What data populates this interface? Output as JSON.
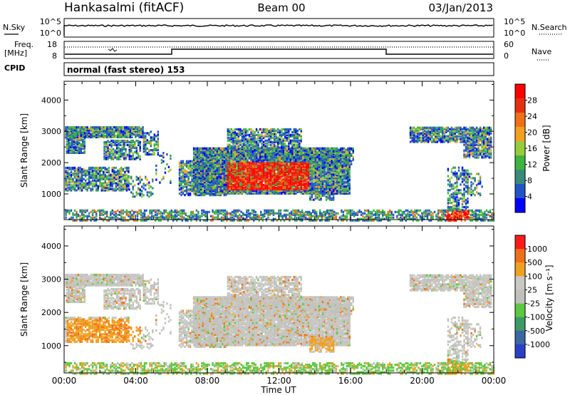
{
  "header": {
    "station": "Hankasalmi (fitACF)",
    "beam": "Beam 00",
    "date": "03/Jan/2013"
  },
  "status_panels": {
    "nsky_label": "N.Sky",
    "nsearch_label": "N.Search",
    "noise_ticks": [
      "10^5",
      "10^0"
    ],
    "freq_label": "Freq.",
    "freq_unit": "[MHz]",
    "freq_ticks": [
      "18",
      "8"
    ],
    "nave_label": "Nave",
    "nave_ticks": [
      "60",
      "0"
    ],
    "cpid_label": "CPID",
    "cpid_value": "normal (fast stereo) 153"
  },
  "chart_data": [
    {
      "type": "heatmap",
      "name": "power",
      "ylabel": "Slant Range [km]",
      "yticks": [
        1000,
        2000,
        3000,
        4000
      ],
      "ylim": [
        180,
        4600
      ],
      "xlim_hours": [
        0,
        24
      ],
      "colorbar_label": "Power [dB]",
      "colorbar_ticks": [
        "28",
        "24",
        "20",
        "16",
        "12",
        "8",
        "4"
      ],
      "colors": [
        "#0000ff",
        "#2254c8",
        "#3a8a7a",
        "#3fb33f",
        "#96cc3c",
        "#f2a020",
        "#f07018",
        "#e43010",
        "#ff0000"
      ]
    },
    {
      "type": "heatmap",
      "name": "velocity",
      "ylabel": "Slant Range [km]",
      "yticks": [
        1000,
        2000,
        3000,
        4000
      ],
      "ylim": [
        180,
        4600
      ],
      "xlim_hours": [
        0,
        24
      ],
      "colorbar_label": "Velocity [m s⁻¹]",
      "colorbar_ticks": [
        "1000",
        "500",
        "100",
        "25",
        "-25",
        "-100",
        "-500",
        "-1000"
      ],
      "colors": [
        "#2a3fc8",
        "#3a68a0",
        "#3e9a64",
        "#5cc840",
        "#c0c0bc",
        "#c8c8c4",
        "#f0a020",
        "#f07018",
        "#ff1a1a"
      ]
    }
  ],
  "x_axis": {
    "ticks": [
      "00:00",
      "04:00",
      "08:00",
      "12:00",
      "16:00",
      "20:00",
      "00:00"
    ],
    "label": "Time UT"
  }
}
